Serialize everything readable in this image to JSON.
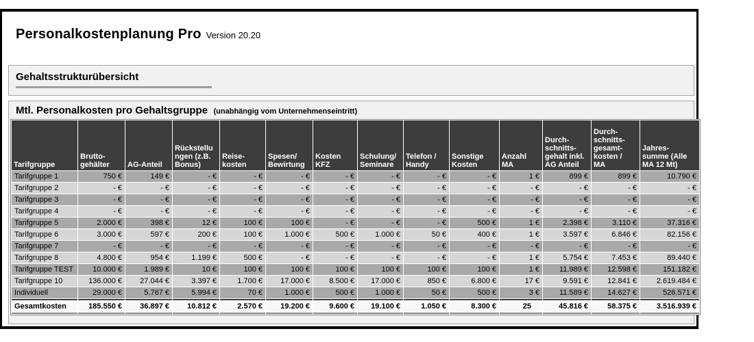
{
  "app": {
    "title": "Personalkostenplanung Pro",
    "version": "Version 20.20"
  },
  "overview": {
    "title": "Gehaltsstrukturübersicht"
  },
  "cost_table_section": {
    "title": "Mtl. Personalkosten pro Gehaltsgruppe",
    "subtitle": "(unabhängig vom Unternehmenseintritt)"
  },
  "colors": {
    "header_bg": "#3d3d3d",
    "row_dark": "#a9a9a9",
    "row_light": "#d6d6d6",
    "total_bg": "#f8f8f8",
    "section_bg": "#f1f1f1",
    "frame_border": "#000000"
  },
  "table": {
    "columns": [
      "Tarifgruppe",
      "Brutto-\ngehälter",
      "AG-Anteil",
      "Rückstellu\nngen (z.B.\nBonus)",
      "Reise-\nkosten",
      "Spesen/\nBewirtung",
      "Kosten KFZ",
      "Schulung/\nSeminare",
      "Telefon /\nHandy",
      "Sonstige\nKosten",
      "Anzahl MA",
      "Durch-\nschnitts-\ngehalt inkl.\nAG Anteil",
      "Durch-\nschnitts-\ngesamt-\nkosten /\nMA",
      "Jahres-\nsumme (Alle\nMA 12 Mt)"
    ],
    "rows": [
      {
        "label": "Tarifgruppe 1",
        "values": [
          "750 €",
          "149 €",
          "- €",
          "- €",
          "- €",
          "- €",
          "- €",
          "- €",
          "- €",
          "1 €",
          "899 €",
          "899 €",
          "10.790 €"
        ]
      },
      {
        "label": "Tarifgruppe 2",
        "values": [
          "- €",
          "- €",
          "- €",
          "- €",
          "- €",
          "- €",
          "- €",
          "- €",
          "- €",
          "- €",
          "- €",
          "- €",
          "- €"
        ]
      },
      {
        "label": "Tarifgruppe 3",
        "values": [
          "- €",
          "- €",
          "- €",
          "- €",
          "- €",
          "- €",
          "- €",
          "- €",
          "- €",
          "- €",
          "- €",
          "- €",
          "- €"
        ]
      },
      {
        "label": "Tarifgruppe 4",
        "values": [
          "- €",
          "- €",
          "- €",
          "- €",
          "- €",
          "- €",
          "- €",
          "- €",
          "- €",
          "- €",
          "- €",
          "- €",
          "- €"
        ]
      },
      {
        "label": "Tarifgruppe 5",
        "values": [
          "2.000 €",
          "398 €",
          "12 €",
          "100 €",
          "100 €",
          "- €",
          "- €",
          "- €",
          "500 €",
          "1 €",
          "2.398 €",
          "3.110 €",
          "37.316 €"
        ]
      },
      {
        "label": "Tarifgruppe 6",
        "values": [
          "3.000 €",
          "597 €",
          "200 €",
          "100 €",
          "1.000 €",
          "500 €",
          "1.000 €",
          "50 €",
          "400 €",
          "1 €",
          "3.597 €",
          "6.846 €",
          "82.156 €"
        ]
      },
      {
        "label": "Tarifgruppe 7",
        "values": [
          "- €",
          "- €",
          "- €",
          "- €",
          "- €",
          "- €",
          "- €",
          "- €",
          "- €",
          "- €",
          "- €",
          "- €",
          "- €"
        ]
      },
      {
        "label": "Tarifgruppe 8",
        "values": [
          "4.800 €",
          "954 €",
          "1.199 €",
          "500 €",
          "- €",
          "- €",
          "- €",
          "- €",
          "- €",
          "1 €",
          "5.754 €",
          "7.453 €",
          "89.440 €"
        ]
      },
      {
        "label": "Tarifgruppe TEST",
        "values": [
          "10.000 €",
          "1.989 €",
          "10 €",
          "100 €",
          "100 €",
          "100 €",
          "100 €",
          "100 €",
          "100 €",
          "1 €",
          "11.989 €",
          "12.598 €",
          "151.182 €"
        ]
      },
      {
        "label": "Tarifgruppe 10",
        "values": [
          "136.000 €",
          "27.044 €",
          "3.397 €",
          "1.700 €",
          "17.000 €",
          "8.500 €",
          "17.000 €",
          "850 €",
          "6.800 €",
          "17 €",
          "9.591 €",
          "12.841 €",
          "2.619.484 €"
        ]
      },
      {
        "label": "Individuell",
        "values": [
          "29.000 €",
          "5.767 €",
          "5.994 €",
          "70 €",
          "1.000 €",
          "500 €",
          "1.000 €",
          "50 €",
          "500 €",
          "3 €",
          "11.589 €",
          "14.627 €",
          "526.571 €"
        ]
      }
    ],
    "total": {
      "label": "Gesamtkosten",
      "values": [
        "185.550 €",
        "36.897 €",
        "10.812 €",
        "2.570 €",
        "19.200 €",
        "9.600 €",
        "19.100 €",
        "1.050 €",
        "8.300 €",
        "25",
        "45.816 €",
        "58.375 €",
        "3.516.939 €"
      ]
    }
  }
}
